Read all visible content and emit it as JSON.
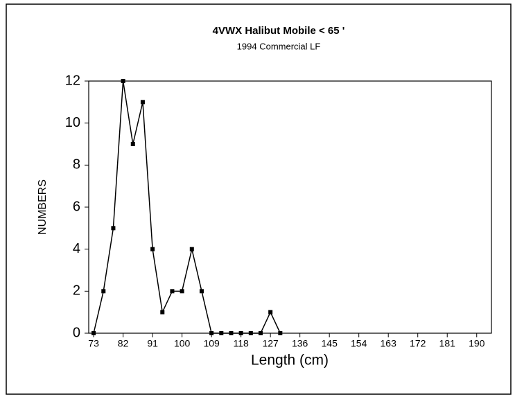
{
  "chart_data": {
    "type": "line",
    "title": "4VWX Halibut Mobile < 65 '",
    "subtitle": "1994 Commercial LF",
    "x_label": "Length (cm)",
    "y_label": "NUMBERS",
    "x": [
      73,
      76,
      79,
      82,
      85,
      88,
      91,
      94,
      97,
      100,
      103,
      106,
      109,
      112,
      115,
      118,
      121,
      124,
      127,
      130
    ],
    "series": [
      {
        "name": "1994",
        "color": "#000000",
        "values": [
          0,
          2,
          5,
          12,
          9,
          11,
          4,
          1,
          2,
          2,
          4,
          2,
          0,
          0,
          0,
          0,
          0,
          0,
          1,
          0
        ]
      }
    ],
    "xlim": [
      71.5,
      194.5
    ],
    "xticks": [
      73,
      82,
      91,
      100,
      109,
      118,
      127,
      136,
      145,
      154,
      163,
      172,
      181,
      190
    ],
    "ylim": [
      0,
      12
    ],
    "yticks": [
      0,
      2,
      4,
      6,
      8,
      10,
      12
    ],
    "grid": false
  }
}
